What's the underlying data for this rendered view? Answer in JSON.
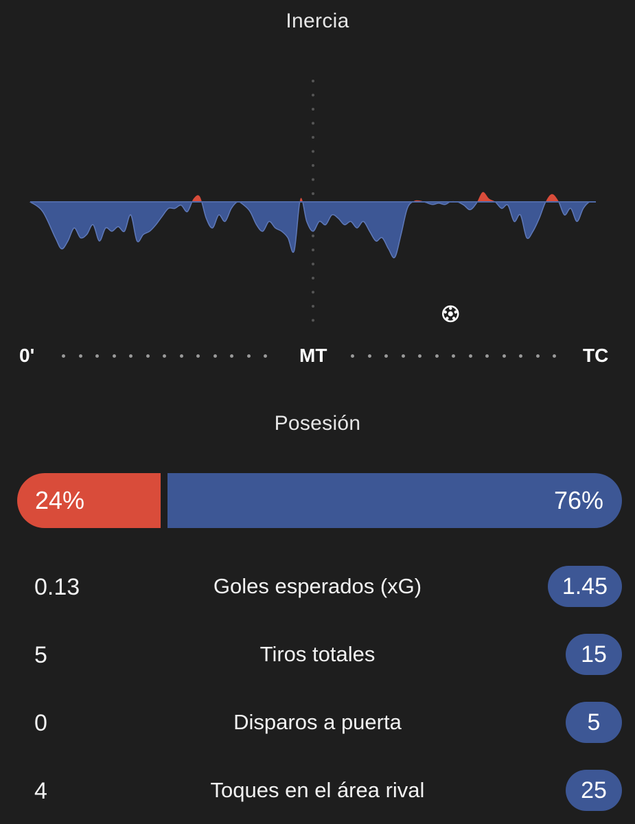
{
  "momentum": {
    "title": "Inercia",
    "timeline": {
      "start_label": "0'",
      "half_label": "MT",
      "end_label": "TC"
    },
    "goal_icon": "soccer-ball-icon",
    "goal_minute": 66,
    "colors": {
      "home": "#d94c3a",
      "away": "#3d5795",
      "background": "#1e1e1e"
    }
  },
  "chart_data": {
    "type": "area",
    "title": "Inercia",
    "x_unit": "minute",
    "x_categories_labels": [
      "0'",
      "MT",
      "TC"
    ],
    "ylim": [
      -1,
      1
    ],
    "series": [
      {
        "x": [
          0,
          2,
          4,
          5,
          6,
          7,
          8,
          9,
          10,
          11,
          12,
          13,
          14,
          15,
          16,
          17,
          18,
          19,
          20,
          21,
          22,
          23,
          24,
          25,
          26,
          27,
          28,
          29,
          30,
          31,
          32,
          33,
          34,
          35,
          36,
          37,
          38,
          39,
          40,
          41,
          42,
          43,
          44,
          45,
          46,
          47,
          48,
          49,
          50,
          51,
          52,
          53,
          54,
          55,
          56,
          57,
          58,
          59,
          60,
          61,
          62,
          63,
          64,
          65,
          66,
          67,
          68,
          69,
          70,
          71,
          72,
          73,
          74,
          75,
          76,
          77,
          78,
          79,
          80,
          81,
          82,
          83,
          84,
          85,
          86,
          87,
          88,
          89,
          90
        ],
        "values": [
          0,
          -0.15,
          -0.55,
          -0.72,
          -0.6,
          -0.4,
          -0.55,
          -0.5,
          -0.35,
          -0.6,
          -0.4,
          -0.45,
          -0.38,
          -0.45,
          -0.2,
          -0.6,
          -0.5,
          -0.45,
          -0.35,
          -0.22,
          -0.1,
          -0.1,
          -0.05,
          -0.15,
          0.05,
          0.08,
          -0.25,
          -0.4,
          -0.2,
          -0.3,
          -0.1,
          0,
          -0.05,
          -0.15,
          -0.35,
          -0.45,
          -0.3,
          -0.4,
          -0.45,
          -0.55,
          -0.75,
          0.05,
          -0.3,
          -0.45,
          -0.3,
          -0.35,
          -0.2,
          -0.25,
          -0.35,
          -0.3,
          -0.4,
          -0.3,
          -0.45,
          -0.6,
          -0.55,
          -0.72,
          -0.85,
          -0.5,
          -0.1,
          0.01,
          0.02,
          -0.01,
          -0.04,
          -0.02,
          -0.04,
          0.01,
          0,
          -0.05,
          -0.12,
          -0.02,
          0.15,
          0.05,
          0,
          -0.1,
          -0.05,
          -0.3,
          -0.2,
          -0.55,
          -0.45,
          -0.25,
          0,
          0.12,
          0.02,
          -0.2,
          -0.1,
          -0.3,
          -0.1,
          0,
          0
        ]
      }
    ]
  },
  "possession": {
    "title": "Posesión",
    "home_label": "24%",
    "away_label": "76%",
    "home_value": 24,
    "away_value": 76
  },
  "stats": [
    {
      "home": "0.13",
      "label": "Goles esperados (xG)",
      "away": "1.45"
    },
    {
      "home": "5",
      "label": "Tiros totales",
      "away": "15"
    },
    {
      "home": "0",
      "label": "Disparos a puerta",
      "away": "5"
    },
    {
      "home": "4",
      "label": "Toques en el área rival",
      "away": "25"
    }
  ]
}
